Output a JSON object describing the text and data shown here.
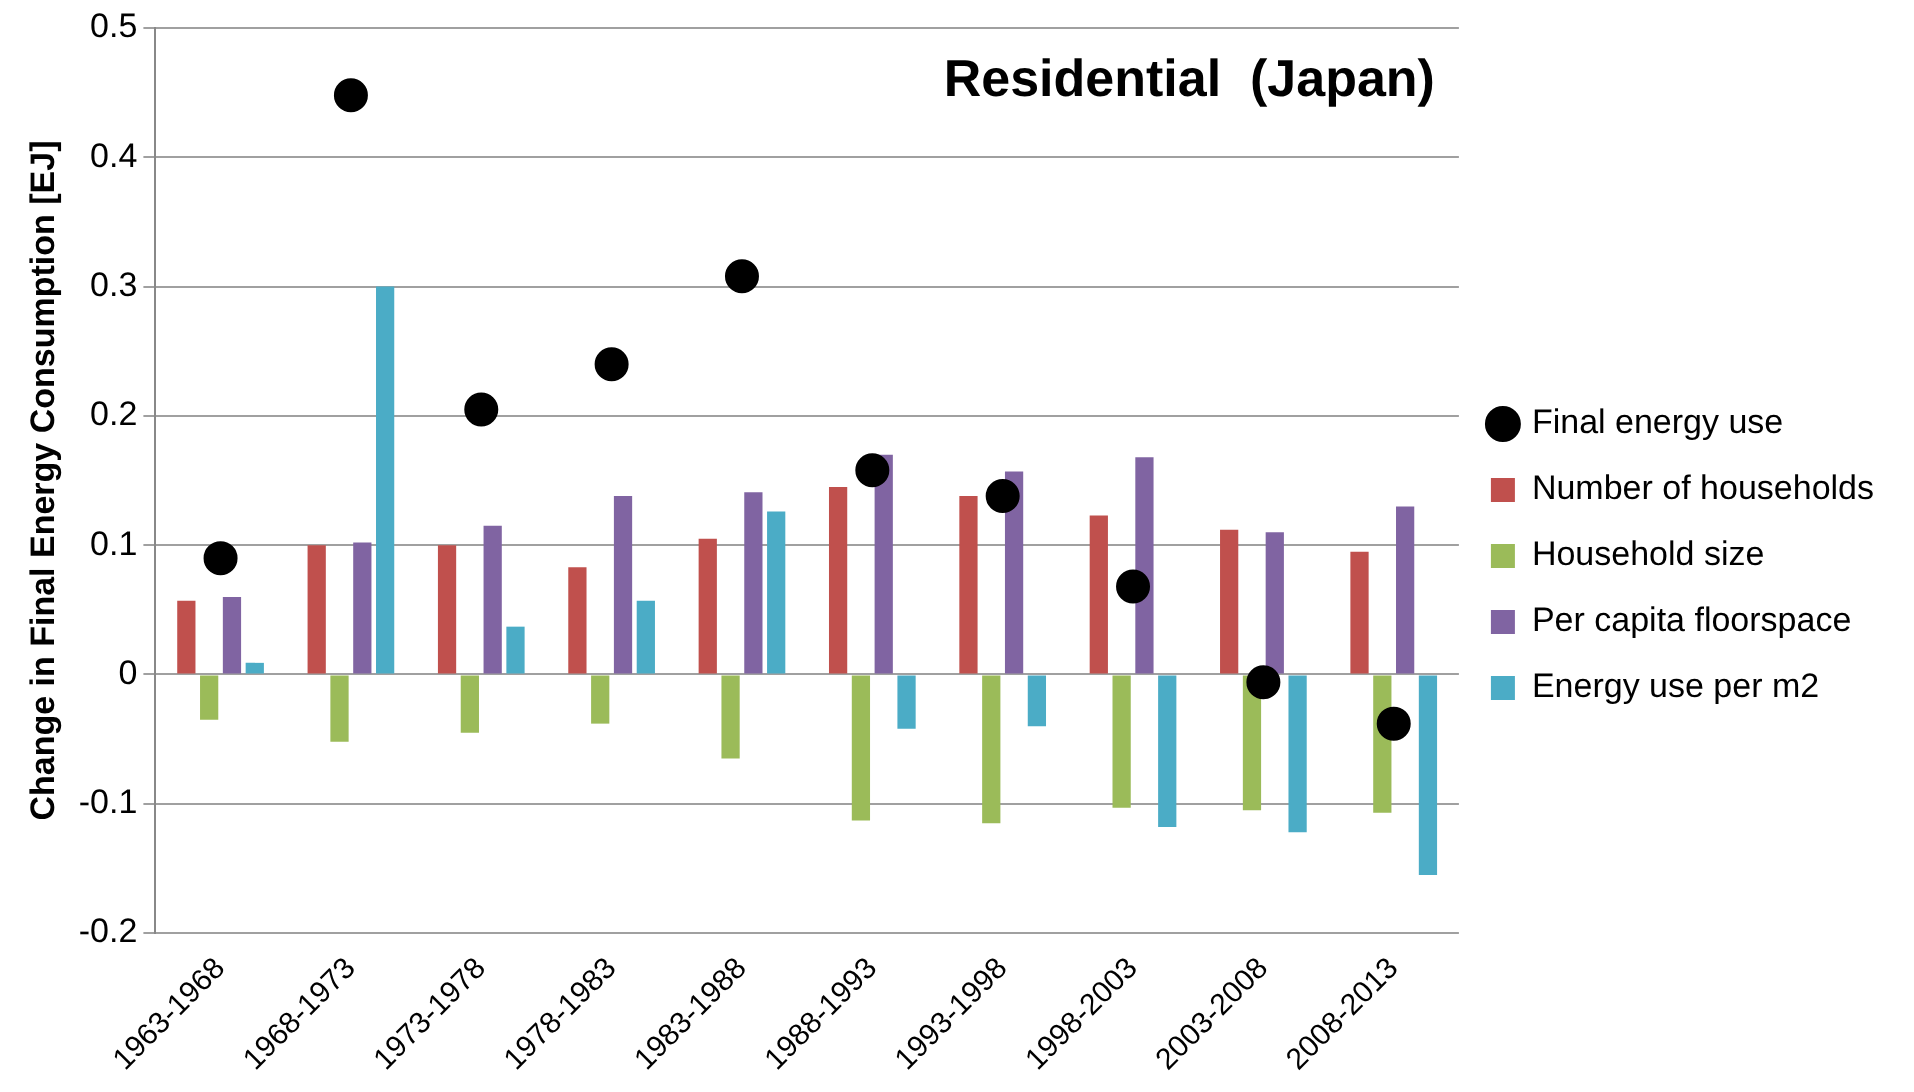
{
  "chart_data": {
    "type": "bar",
    "title": "Residential  (Japan)",
    "ylabel": "Change in Final Energy Consumption [EJ]",
    "categories": [
      "1963-1968",
      "1968-1973",
      "1973-1978",
      "1978-1983",
      "1983-1988",
      "1988-1993",
      "1993-1998",
      "1998-2003",
      "2003-2008",
      "2008-2013"
    ],
    "series": [
      {
        "name": "Number of households",
        "color": "#c0504d",
        "values": [
          0.057,
          0.1,
          0.1,
          0.083,
          0.105,
          0.145,
          0.138,
          0.123,
          0.112,
          0.095
        ]
      },
      {
        "name": "Household size",
        "color": "#9bbb59",
        "values": [
          -0.035,
          -0.052,
          -0.045,
          -0.038,
          -0.065,
          -0.113,
          -0.115,
          -0.103,
          -0.105,
          -0.107
        ]
      },
      {
        "name": "Per capita floorspace",
        "color": "#8064a2",
        "values": [
          0.06,
          0.102,
          0.115,
          0.138,
          0.141,
          0.17,
          0.157,
          0.168,
          0.11,
          0.13
        ]
      },
      {
        "name": "Energy use per m2",
        "color": "#4bacc6",
        "values": [
          0.009,
          0.3,
          0.037,
          0.057,
          0.126,
          -0.042,
          -0.04,
          -0.118,
          -0.122,
          -0.155
        ]
      },
      {
        "name": "Final energy use",
        "type": "scatter",
        "color": "#000000",
        "marker": "circle",
        "x": [
          "1963-1968",
          "1968-1973",
          "1973-1978",
          "1978-1983",
          "1983-1988",
          "1988-1993",
          "1993-1998",
          "1998-2003",
          "2003-2008",
          "2008-2013"
        ],
        "values": [
          0.09,
          0.448,
          0.205,
          0.24,
          0.308,
          0.158,
          0.138,
          0.068,
          -0.006,
          -0.038
        ]
      }
    ],
    "ylim": [
      -0.2,
      0.5
    ],
    "yticks": [
      -0.2,
      -0.1,
      0,
      0.1,
      0.2,
      0.3,
      0.4,
      0.5
    ],
    "grid": "y",
    "legend": "right"
  }
}
